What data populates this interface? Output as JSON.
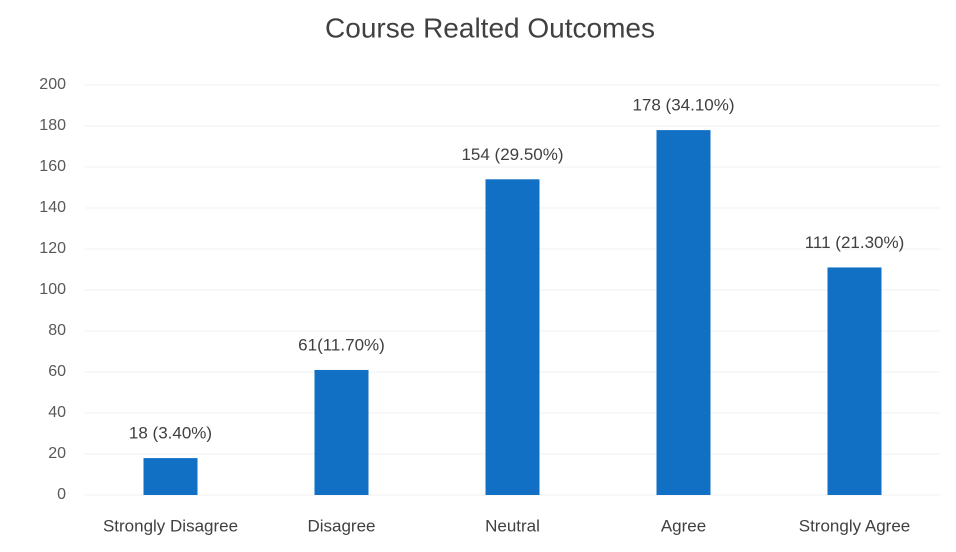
{
  "chart_data": {
    "type": "bar",
    "title": "Course Realted Outcomes",
    "categories": [
      "Strongly Disagree",
      "Disagree",
      "Neutral",
      "Agree",
      "Strongly Agree"
    ],
    "values": [
      18,
      61,
      154,
      178,
      111
    ],
    "value_labels": [
      "18 (3.40%)",
      "61(11.70%)",
      "154 (29.50%)",
      "178 (34.10%)",
      "111 (21.30%)"
    ],
    "color": "#1170c4",
    "ylim": [
      0,
      200
    ],
    "yticks": [
      0,
      20,
      40,
      60,
      80,
      100,
      120,
      140,
      160,
      180,
      200
    ],
    "grid": true
  }
}
